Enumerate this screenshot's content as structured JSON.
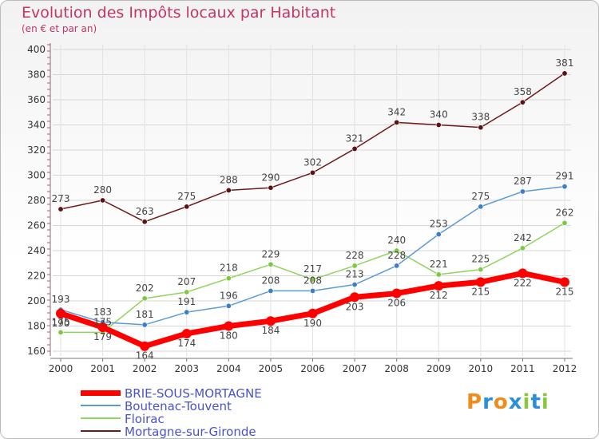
{
  "title": "Evolution des Impôts locaux par Habitant",
  "subtitle": "(en € et par an)",
  "logo": {
    "letters": [
      "P",
      "r",
      "o",
      "x",
      "i",
      "t",
      "i"
    ],
    "colors": [
      "#f08c1a",
      "#2a8fd6",
      "#f08c1a",
      "#2a8fd6",
      "#8cc63f",
      "#2a8fd6",
      "#8cc63f"
    ]
  },
  "chart_data": {
    "type": "line",
    "title": "Evolution des Impôts locaux par Habitant",
    "ylabel": "(en € et par an)",
    "xlabel": "",
    "x": [
      "2000",
      "2001",
      "2002",
      "2003",
      "2004",
      "2005",
      "2006",
      "2007",
      "2008",
      "2009",
      "2010",
      "2011",
      "2012"
    ],
    "ylim": [
      160,
      400
    ],
    "yticks": [
      "160",
      "180",
      "200",
      "220",
      "240",
      "260",
      "280",
      "300",
      "320",
      "340",
      "360",
      "380",
      "400"
    ],
    "series": [
      {
        "name": "BRIE-SOUS-MORTAGNE",
        "values": [
          190,
          179,
          164,
          174,
          180,
          184,
          190,
          203,
          206,
          212,
          215,
          222,
          215
        ],
        "color": "#ff0000"
      },
      {
        "name": "Boutenac-Touvent",
        "values": [
          193,
          183,
          181,
          191,
          196,
          208,
          208,
          213,
          228,
          253,
          275,
          287,
          291
        ],
        "color": "#5b9bd5"
      },
      {
        "name": "Floirac",
        "values": [
          175,
          175,
          202,
          207,
          218,
          229,
          217,
          228,
          240,
          221,
          225,
          242,
          262
        ],
        "color": "#8fd45c"
      },
      {
        "name": "Mortagne-sur-Gironde",
        "values": [
          273,
          280,
          263,
          275,
          288,
          290,
          302,
          321,
          342,
          340,
          338,
          358,
          381
        ],
        "color": "#6e1a1a"
      }
    ]
  }
}
